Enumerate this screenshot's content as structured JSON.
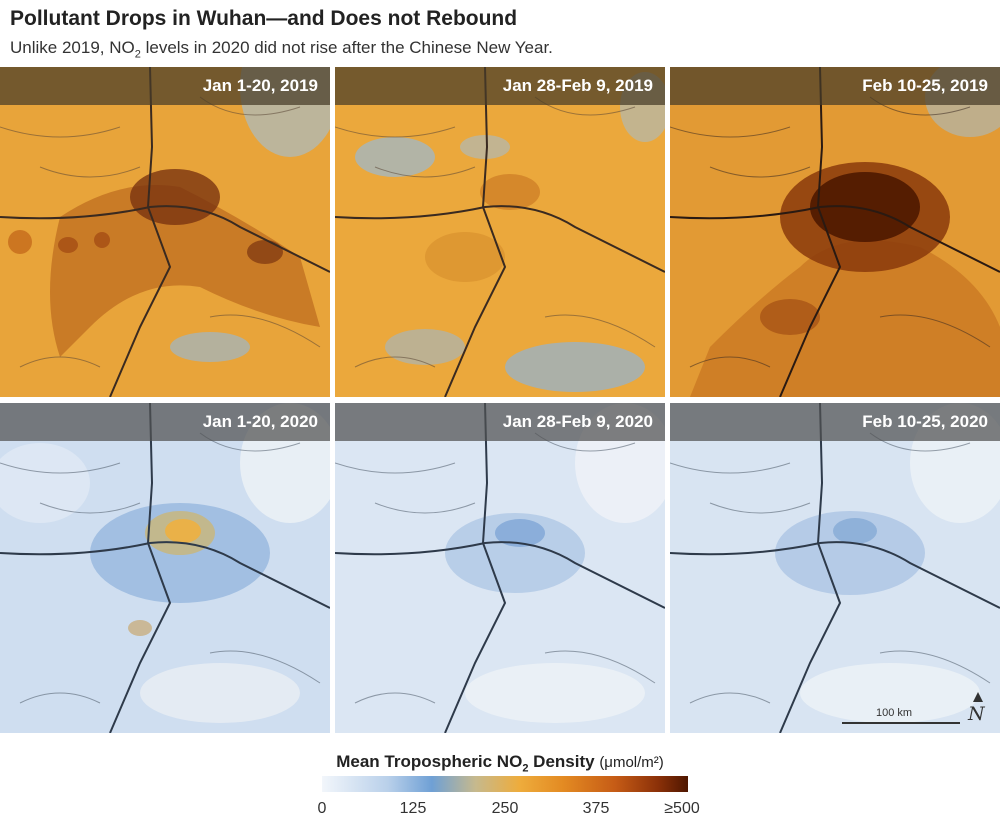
{
  "title": "Pollutant Drops in Wuhan—and Does not Rebound",
  "subtitle": {
    "before": "Unlike 2019, NO",
    "sub": "2",
    "after": " levels in 2020 did not rise after the Chinese New Year."
  },
  "panels": [
    {
      "label": "Jan 1-20, 2019",
      "no2_level": "high"
    },
    {
      "label": "Jan 28-Feb 9, 2019",
      "no2_level": "medium"
    },
    {
      "label": "Feb 10-25, 2019",
      "no2_level": "very-high"
    },
    {
      "label": "Jan 1-20, 2020",
      "no2_level": "low"
    },
    {
      "label": "Jan 28-Feb 9, 2020",
      "no2_level": "very-low"
    },
    {
      "label": "Feb 10-25, 2020",
      "no2_level": "very-low"
    }
  ],
  "scale_bar": "100 km",
  "north_label": "N",
  "legend": {
    "title_before": "Mean Tropospheric NO",
    "title_sub": "2",
    "title_after": " Density",
    "unit": "(μmol/m²)",
    "ticks": [
      "0",
      "125",
      "250",
      "375",
      "≥500"
    ]
  },
  "colors": {
    "low": "#f2f6fb",
    "mid_blue": "#6fa0d5",
    "orange": "#eeac3c",
    "dark": "#4e1600"
  }
}
